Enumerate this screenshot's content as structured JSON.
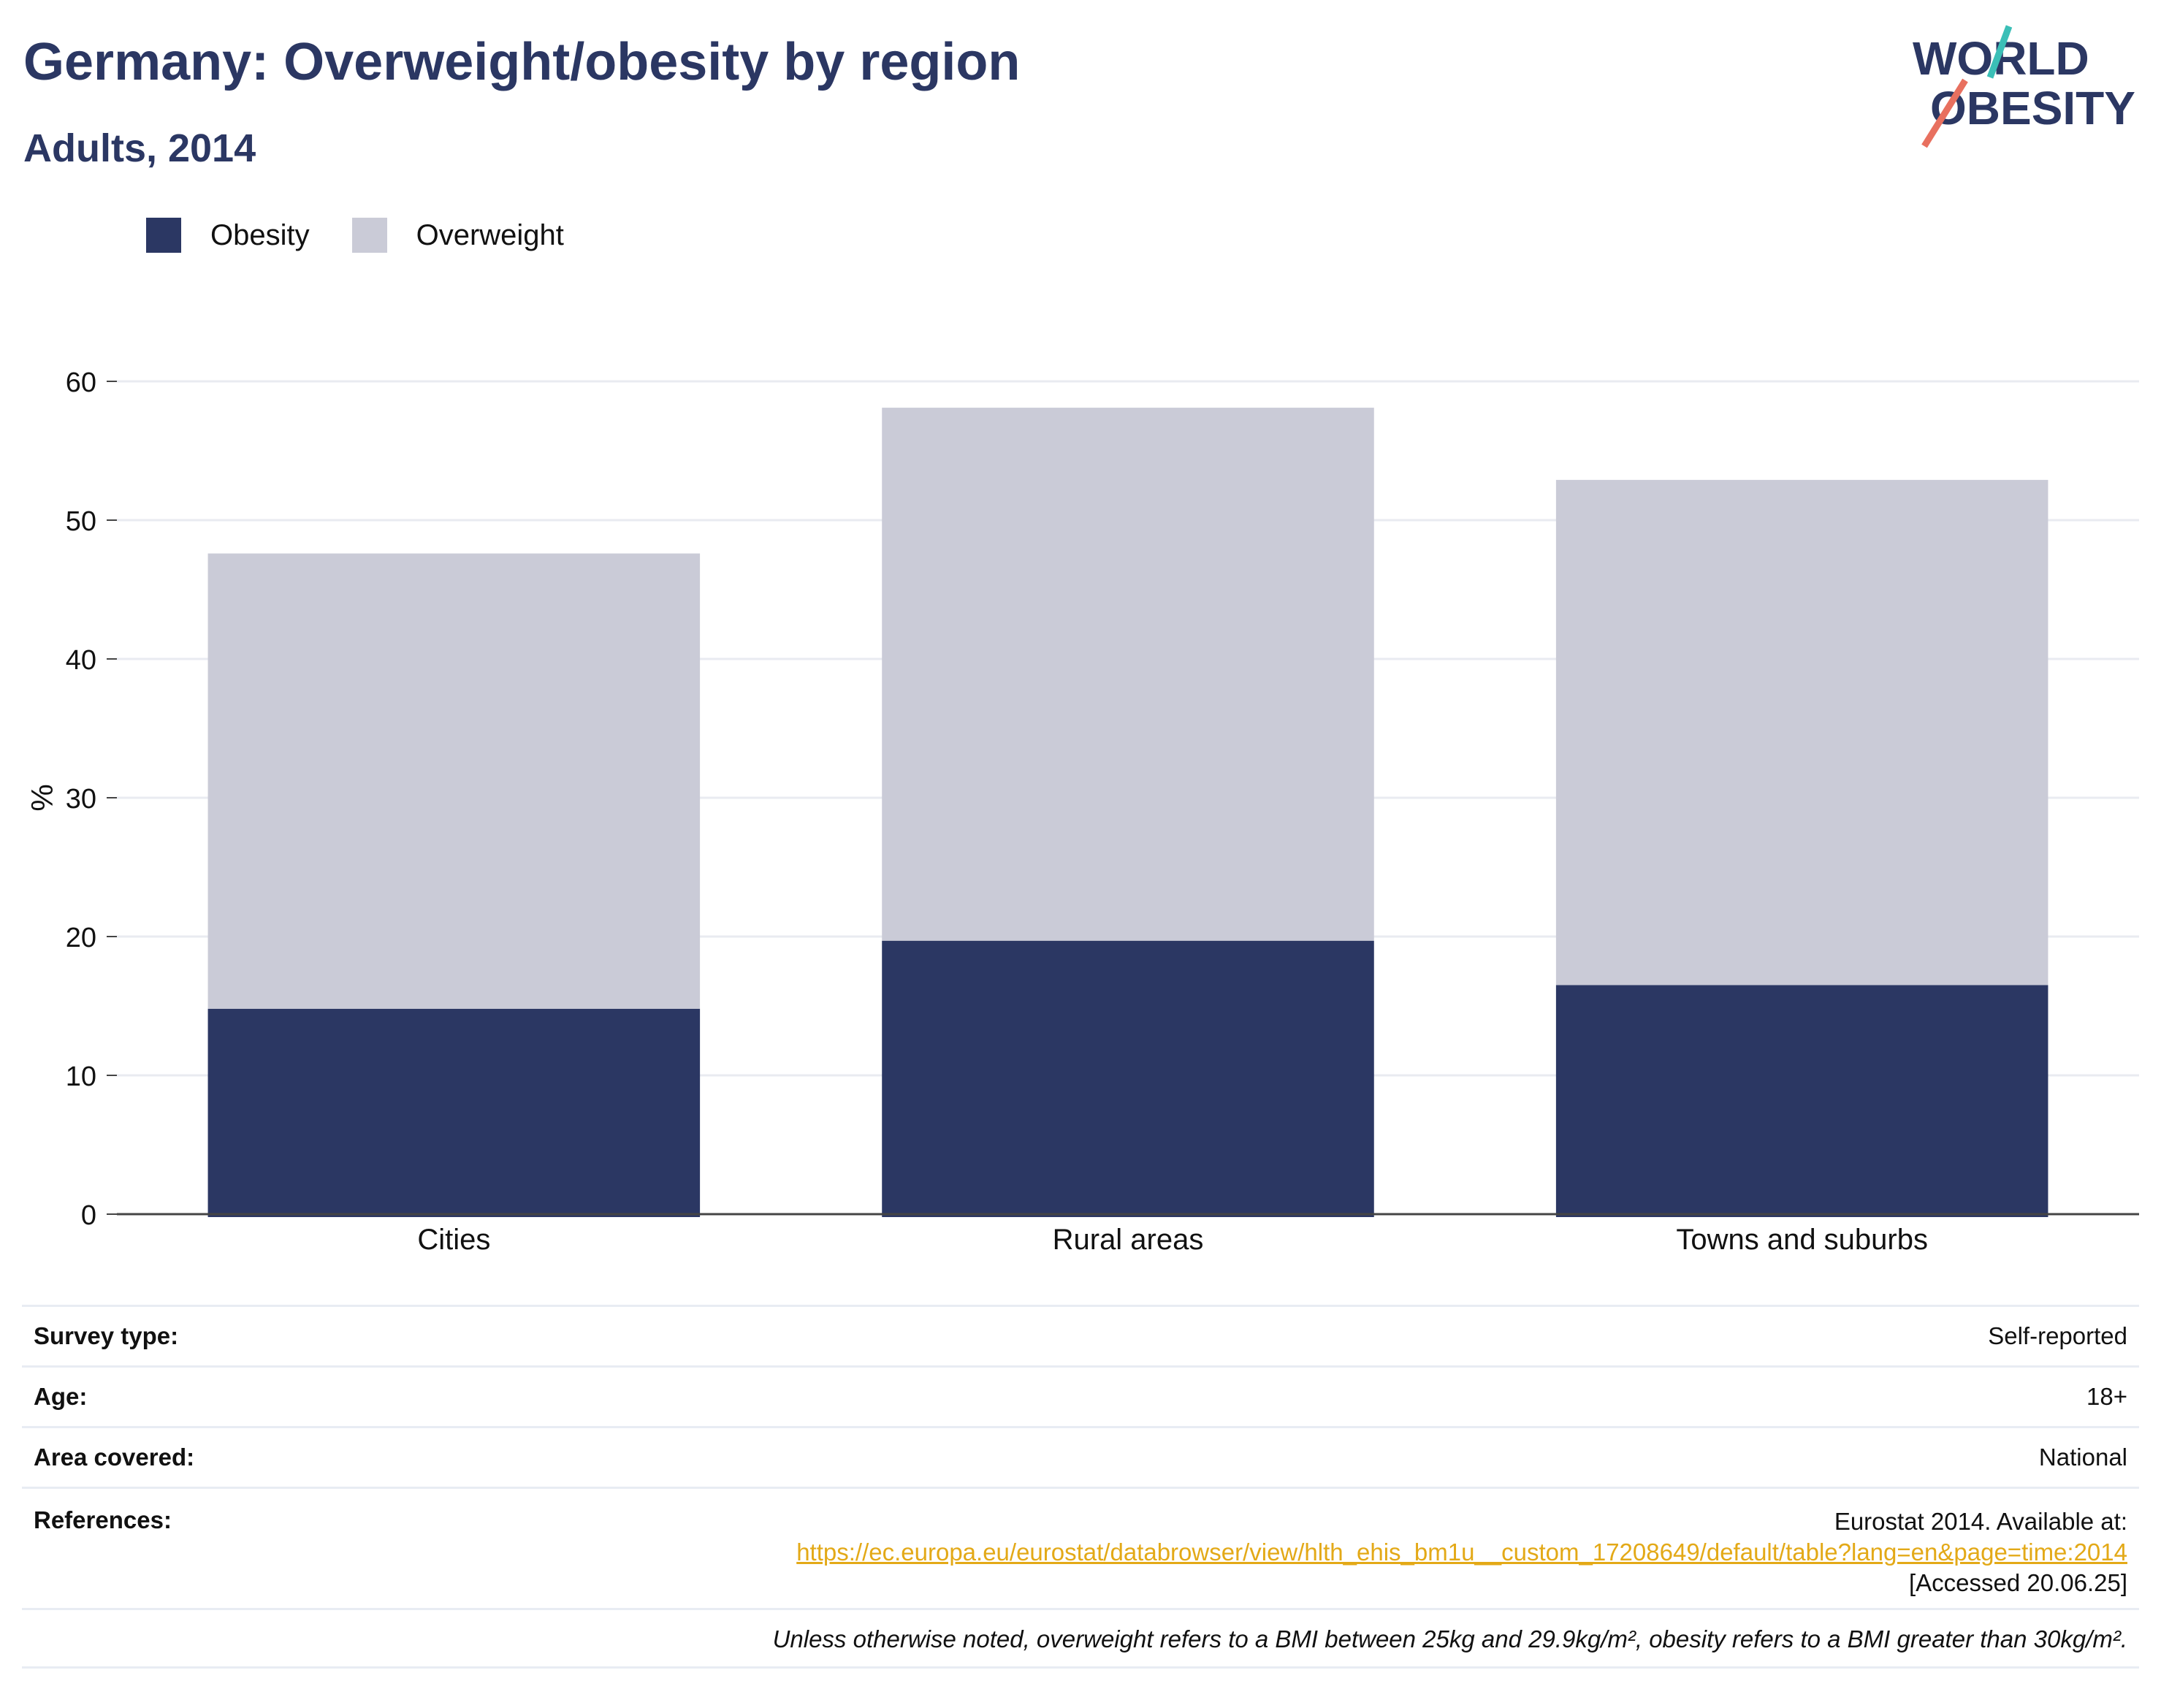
{
  "header": {
    "title": "Germany: Overweight/obesity by region",
    "subtitle": "Adults, 2014"
  },
  "logo": {
    "line1": "WORLD",
    "line2": "OBESITY",
    "accent_teal": "#3bbfb7",
    "accent_coral": "#e8705f"
  },
  "colors": {
    "obesity": "#2b3763",
    "overweight": "#cacbd7",
    "gridline": "#e9ebf1",
    "axis": "#444444",
    "link": "#e3a917"
  },
  "legend": {
    "items": [
      {
        "label": "Obesity",
        "color": "#2b3763"
      },
      {
        "label": "Overweight",
        "color": "#cacbd7"
      }
    ]
  },
  "chart_data": {
    "type": "bar",
    "stacked": true,
    "categories": [
      "Cities",
      "Rural areas",
      "Towns and suburbs"
    ],
    "series": [
      {
        "name": "Obesity",
        "values": [
          14.8,
          19.7,
          16.5
        ]
      },
      {
        "name": "Overweight",
        "values": [
          32.8,
          38.4,
          36.4
        ]
      }
    ],
    "ylabel": "%",
    "ylim": [
      0,
      60
    ],
    "yticks": [
      0,
      10,
      20,
      30,
      40,
      50,
      60
    ],
    "grid": true,
    "legend_position": "top-left"
  },
  "info": {
    "survey_type_label": "Survey type:",
    "survey_type_value": "Self-reported",
    "age_label": "Age:",
    "age_value": "18+",
    "area_label": "Area covered:",
    "area_value": "National",
    "references_label": "References:",
    "references_line1": "Eurostat 2014. Available at:",
    "references_link": "https://ec.europa.eu/eurostat/databrowser/view/hlth_ehis_bm1u__custom_17208649/default/table?lang=en&page=time:2014",
    "references_line3": "[Accessed 20.06.25]",
    "note": "Unless otherwise noted, overweight refers to a BMI between 25kg and 29.9kg/m², obesity refers to a BMI greater than 30kg/m²."
  }
}
